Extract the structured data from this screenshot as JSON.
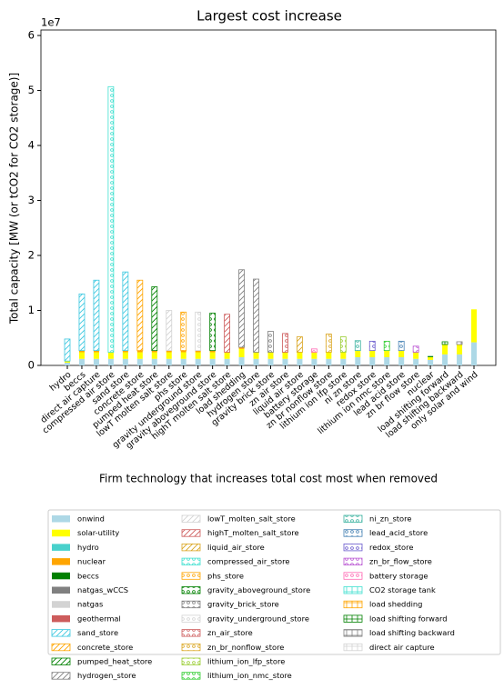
{
  "chart_data": {
    "type": "bar",
    "stacked": true,
    "title": "Largest cost increase",
    "x_label": "Firm technology that increases total cost most when removed",
    "y_label": "Total capacity [MW (or tCO2 for CO2 storage)]",
    "y_offset_label": "1e7",
    "ylim": [
      0,
      6.1
    ],
    "yticks": [
      0,
      1,
      2,
      3,
      4,
      5,
      6
    ],
    "grid": false,
    "categories": [
      "hydro",
      "beccs",
      "direct air capture",
      "compressed air store",
      "sand store",
      "concrete store",
      "pumped heat store",
      "lowT molten salt store",
      "phs store",
      "gravity underground store",
      "gravity aboveground store",
      "highT molten salt store",
      "load shedding",
      "hydrogen store",
      "gravity brick store",
      "zn air store",
      "liquid air store",
      "battery storage",
      "zn br nonflow store",
      "lithium ion lfp store",
      "ni zn store",
      "redox store",
      "lithium ion nmc store",
      "lead acid store",
      "zn br flow store",
      "nuclear",
      "load shifting forward",
      "load shifting backward",
      "only solar and wind"
    ],
    "series": [
      {
        "name": "onwind",
        "color": "#add8e6",
        "hatch": null,
        "values": [
          0.05,
          0.12,
          0.12,
          0.12,
          0.12,
          0.12,
          0.12,
          0.12,
          0.12,
          0.12,
          0.12,
          0.12,
          0.15,
          0.12,
          0.12,
          0.12,
          0.12,
          0.12,
          0.12,
          0.12,
          0.15,
          0.15,
          0.15,
          0.15,
          0.12,
          0.1,
          0.2,
          0.2,
          0.42
        ]
      },
      {
        "name": "solar-utility",
        "color": "#ffff00",
        "hatch": null,
        "values": [
          0.03,
          0.12,
          0.12,
          0.12,
          0.12,
          0.12,
          0.12,
          0.12,
          0.12,
          0.12,
          0.12,
          0.12,
          0.15,
          0.12,
          0.12,
          0.12,
          0.12,
          0.12,
          0.12,
          0.12,
          0.12,
          0.12,
          0.12,
          0.12,
          0.12,
          0.05,
          0.18,
          0.18,
          0.6
        ]
      },
      {
        "name": "hydro",
        "color": "#48d1cc",
        "hatch": null,
        "values": [
          0,
          0,
          0,
          0,
          0,
          0,
          0,
          0,
          0,
          0,
          0,
          0,
          0,
          0,
          0,
          0,
          0,
          0,
          0,
          0,
          0,
          0,
          0,
          0,
          0,
          0,
          0,
          0,
          0
        ]
      },
      {
        "name": "nuclear",
        "color": "#ffa500",
        "hatch": null,
        "values": [
          0,
          0.03,
          0.03,
          0,
          0.03,
          0.03,
          0.03,
          0.03,
          0.03,
          0.03,
          0.03,
          0,
          0.03,
          0,
          0,
          0,
          0,
          0,
          0,
          0,
          0,
          0,
          0,
          0,
          0,
          0,
          0,
          0,
          0
        ]
      },
      {
        "name": "beccs",
        "color": "#008000",
        "hatch": null,
        "values": [
          0,
          0,
          0,
          0,
          0,
          0,
          0,
          0,
          0,
          0,
          0,
          0,
          0,
          0,
          0,
          0,
          0,
          0,
          0,
          0,
          0,
          0,
          0,
          0,
          0,
          0.02,
          0,
          0,
          0
        ]
      },
      {
        "name": "natgas_wCCS",
        "color": "#808080",
        "hatch": null,
        "values": [
          0,
          0,
          0,
          0,
          0,
          0,
          0,
          0,
          0,
          0,
          0,
          0,
          0,
          0,
          0,
          0,
          0,
          0,
          0,
          0,
          0,
          0,
          0,
          0,
          0,
          0,
          0,
          0,
          0
        ]
      },
      {
        "name": "natgas",
        "color": "#d3d3d3",
        "hatch": null,
        "values": [
          0,
          0,
          0,
          0,
          0,
          0,
          0,
          0,
          0,
          0,
          0,
          0,
          0,
          0,
          0,
          0,
          0,
          0,
          0,
          0,
          0,
          0,
          0,
          0,
          0,
          0,
          0,
          0,
          0
        ]
      },
      {
        "name": "geothermal",
        "color": "#cd5c5c",
        "hatch": null,
        "values": [
          0,
          0,
          0,
          0,
          0,
          0,
          0,
          0,
          0,
          0,
          0,
          0,
          0,
          0,
          0,
          0,
          0,
          0,
          0,
          0,
          0,
          0,
          0,
          0,
          0,
          0,
          0,
          0,
          0
        ]
      },
      {
        "name": "sand_store",
        "color": "#3cc8e0",
        "hatch": "/",
        "values": [
          0.4,
          1.03,
          1.28,
          0,
          1.43,
          0,
          0,
          0,
          0,
          0,
          0,
          0,
          0,
          0,
          0,
          0,
          0,
          0,
          0,
          0,
          0,
          0,
          0,
          0,
          0,
          0,
          0,
          0,
          0
        ]
      },
      {
        "name": "concrete_store",
        "color": "#ffa500",
        "hatch": "/",
        "values": [
          0,
          0,
          0,
          0,
          0,
          1.28,
          0,
          0,
          0,
          0,
          0,
          0,
          0,
          0,
          0,
          0,
          0,
          0,
          0,
          0,
          0,
          0,
          0,
          0,
          0,
          0,
          0,
          0,
          0
        ]
      },
      {
        "name": "pumped_heat_store",
        "color": "#008000",
        "hatch": "/",
        "values": [
          0,
          0,
          0,
          0,
          0,
          0,
          1.16,
          0,
          0,
          0,
          0,
          0,
          0,
          0,
          0,
          0,
          0,
          0,
          0,
          0,
          0,
          0,
          0,
          0,
          0,
          0,
          0,
          0,
          0
        ]
      },
      {
        "name": "hydrogen_store",
        "color": "#808080",
        "hatch": "/",
        "values": [
          0,
          0,
          0,
          0,
          0,
          0,
          0,
          0,
          0,
          0,
          0,
          0,
          1.41,
          1.33,
          0,
          0,
          0,
          0,
          0,
          0,
          0,
          0,
          0,
          0,
          0,
          0,
          0,
          0,
          0
        ]
      },
      {
        "name": "lowT_molten_salt_store",
        "color": "#d3d3d3",
        "hatch": "/",
        "values": [
          0,
          0,
          0,
          0,
          0,
          0,
          0,
          0.73,
          0,
          0,
          0,
          0,
          0,
          0,
          0,
          0,
          0,
          0,
          0,
          0,
          0,
          0,
          0,
          0,
          0,
          0,
          0,
          0,
          0
        ]
      },
      {
        "name": "highT_molten_salt_store",
        "color": "#cd5c5c",
        "hatch": "/",
        "values": [
          0,
          0,
          0,
          0,
          0,
          0,
          0,
          0,
          0,
          0,
          0,
          0.69,
          0,
          0,
          0,
          0,
          0,
          0,
          0,
          0,
          0,
          0,
          0,
          0,
          0,
          0,
          0,
          0,
          0
        ]
      },
      {
        "name": "liquid_air_store",
        "color": "#daa520",
        "hatch": "/",
        "values": [
          0,
          0,
          0,
          0,
          0,
          0,
          0,
          0,
          0,
          0,
          0,
          0,
          0,
          0,
          0,
          0,
          0.28,
          0,
          0,
          0,
          0,
          0,
          0,
          0,
          0,
          0,
          0,
          0,
          0
        ]
      },
      {
        "name": "compressed_air_store",
        "color": "#40e0d0",
        "hatch": "o",
        "values": [
          0,
          0,
          0,
          4.83,
          0,
          0,
          0,
          0,
          0,
          0,
          0,
          0,
          0,
          0,
          0,
          0,
          0,
          0,
          0,
          0,
          0,
          0,
          0,
          0,
          0,
          0,
          0,
          0,
          0
        ]
      },
      {
        "name": "phs_store",
        "color": "#ffa500",
        "hatch": "o",
        "values": [
          0,
          0,
          0,
          0,
          0,
          0,
          0,
          0,
          0.7,
          0,
          0,
          0,
          0,
          0,
          0,
          0,
          0,
          0,
          0,
          0,
          0,
          0,
          0,
          0,
          0,
          0,
          0,
          0,
          0
        ]
      },
      {
        "name": "gravity_aboveground_store",
        "color": "#008000",
        "hatch": "o",
        "values": [
          0,
          0,
          0,
          0,
          0,
          0,
          0,
          0,
          0,
          0,
          0.68,
          0,
          0,
          0,
          0,
          0,
          0,
          0,
          0,
          0,
          0,
          0,
          0,
          0,
          0,
          0,
          0,
          0,
          0
        ]
      },
      {
        "name": "gravity_brick_store",
        "color": "#808080",
        "hatch": "o",
        "values": [
          0,
          0,
          0,
          0,
          0,
          0,
          0,
          0,
          0,
          0,
          0,
          0,
          0,
          0,
          0.38,
          0,
          0,
          0,
          0,
          0,
          0,
          0,
          0,
          0,
          0,
          0,
          0,
          0,
          0
        ]
      },
      {
        "name": "gravity_underground_store",
        "color": "#d3d3d3",
        "hatch": "o",
        "values": [
          0,
          0,
          0,
          0,
          0,
          0,
          0,
          0,
          0,
          0.7,
          0,
          0,
          0,
          0,
          0,
          0,
          0,
          0,
          0,
          0,
          0,
          0,
          0,
          0,
          0,
          0,
          0,
          0,
          0
        ]
      },
      {
        "name": "zn_air_store",
        "color": "#cd5c5c",
        "hatch": "o",
        "values": [
          0,
          0,
          0,
          0,
          0,
          0,
          0,
          0,
          0,
          0,
          0,
          0,
          0,
          0,
          0,
          0.34,
          0,
          0,
          0,
          0,
          0,
          0,
          0,
          0,
          0,
          0,
          0,
          0,
          0
        ]
      },
      {
        "name": "zn_br_nonflow_store",
        "color": "#daa520",
        "hatch": "o",
        "values": [
          0,
          0,
          0,
          0,
          0,
          0,
          0,
          0,
          0,
          0,
          0,
          0,
          0,
          0,
          0,
          0,
          0,
          0,
          0.33,
          0,
          0,
          0,
          0,
          0,
          0,
          0,
          0,
          0,
          0
        ]
      },
      {
        "name": "lithium_ion_lfp_store",
        "color": "#9acd32",
        "hatch": "o",
        "values": [
          0,
          0,
          0,
          0,
          0,
          0,
          0,
          0,
          0,
          0,
          0,
          0,
          0,
          0,
          0,
          0,
          0,
          0,
          0,
          0.28,
          0,
          0,
          0,
          0,
          0,
          0,
          0,
          0,
          0
        ]
      },
      {
        "name": "lithium_ion_nmc_store",
        "color": "#32cd32",
        "hatch": "o",
        "values": [
          0,
          0,
          0,
          0,
          0,
          0,
          0,
          0,
          0,
          0,
          0,
          0,
          0,
          0,
          0,
          0,
          0,
          0,
          0,
          0,
          0,
          0,
          0.17,
          0,
          0,
          0,
          0,
          0,
          0
        ]
      },
      {
        "name": "ni_zn_store",
        "color": "#3cb3a0",
        "hatch": "o",
        "values": [
          0,
          0,
          0,
          0,
          0,
          0,
          0,
          0,
          0,
          0,
          0,
          0,
          0,
          0,
          0,
          0,
          0,
          0,
          0,
          0,
          0.18,
          0,
          0,
          0,
          0,
          0,
          0,
          0,
          0
        ]
      },
      {
        "name": "lead_acid_store",
        "color": "#4682b4",
        "hatch": "o",
        "values": [
          0,
          0,
          0,
          0,
          0,
          0,
          0,
          0,
          0,
          0,
          0,
          0,
          0,
          0,
          0,
          0,
          0,
          0,
          0,
          0,
          0,
          0,
          0,
          0.17,
          0,
          0,
          0,
          0,
          0
        ]
      },
      {
        "name": "redox_store",
        "color": "#6a5acd",
        "hatch": "o",
        "values": [
          0,
          0,
          0,
          0,
          0,
          0,
          0,
          0,
          0,
          0,
          0,
          0,
          0,
          0,
          0,
          0,
          0,
          0,
          0,
          0,
          0,
          0.17,
          0,
          0,
          0,
          0,
          0,
          0,
          0
        ]
      },
      {
        "name": "zn_br_flow_store",
        "color": "#ba55d3",
        "hatch": "o",
        "values": [
          0,
          0,
          0,
          0,
          0,
          0,
          0,
          0,
          0,
          0,
          0,
          0,
          0,
          0,
          0,
          0,
          0,
          0,
          0,
          0,
          0,
          0,
          0,
          0,
          0.11,
          0,
          0,
          0,
          0
        ]
      },
      {
        "name": "battery storage",
        "color": "#ff69b4",
        "hatch": "o",
        "values": [
          0,
          0,
          0,
          0,
          0,
          0,
          0,
          0,
          0,
          0,
          0,
          0,
          0,
          0,
          0,
          0,
          0,
          0.06,
          0,
          0,
          0,
          0,
          0,
          0,
          0,
          0,
          0,
          0,
          0
        ]
      },
      {
        "name": "CO2 storage tank",
        "color": "#40e0d0",
        "hatch": "+",
        "values": [
          0,
          0,
          0,
          0,
          0,
          0,
          0,
          0,
          0,
          0,
          0,
          0,
          0,
          0,
          0,
          0,
          0,
          0,
          0,
          0,
          0,
          0,
          0,
          0,
          0,
          0,
          0,
          0,
          0
        ]
      },
      {
        "name": "load shedding",
        "color": "#ffa500",
        "hatch": "+",
        "values": [
          0,
          0,
          0,
          0,
          0,
          0,
          0,
          0,
          0,
          0,
          0,
          0,
          0,
          0,
          0,
          0,
          0,
          0,
          0,
          0,
          0,
          0,
          0,
          0,
          0,
          0,
          0,
          0,
          0
        ]
      },
      {
        "name": "load shifting forward",
        "color": "#008000",
        "hatch": "+",
        "values": [
          0,
          0,
          0,
          0,
          0,
          0,
          0,
          0,
          0,
          0,
          0,
          0,
          0,
          0,
          0,
          0,
          0,
          0,
          0,
          0,
          0,
          0,
          0,
          0,
          0,
          0,
          0.05,
          0,
          0
        ]
      },
      {
        "name": "load shifting backward",
        "color": "#808080",
        "hatch": "+",
        "values": [
          0,
          0,
          0,
          0,
          0,
          0,
          0,
          0,
          0,
          0,
          0,
          0,
          0,
          0,
          0,
          0,
          0,
          0,
          0,
          0,
          0,
          0,
          0,
          0,
          0,
          0,
          0,
          0.05,
          0
        ]
      },
      {
        "name": "direct air capture",
        "color": "#d3d3d3",
        "hatch": "+",
        "values": [
          0,
          0,
          0,
          0,
          0,
          0,
          0,
          0,
          0,
          0,
          0,
          0,
          0,
          0,
          0,
          0,
          0,
          0,
          0,
          0,
          0,
          0,
          0,
          0,
          0,
          0,
          0,
          0,
          0
        ]
      }
    ],
    "legend_position": "lower center",
    "legend_columns": 3
  }
}
